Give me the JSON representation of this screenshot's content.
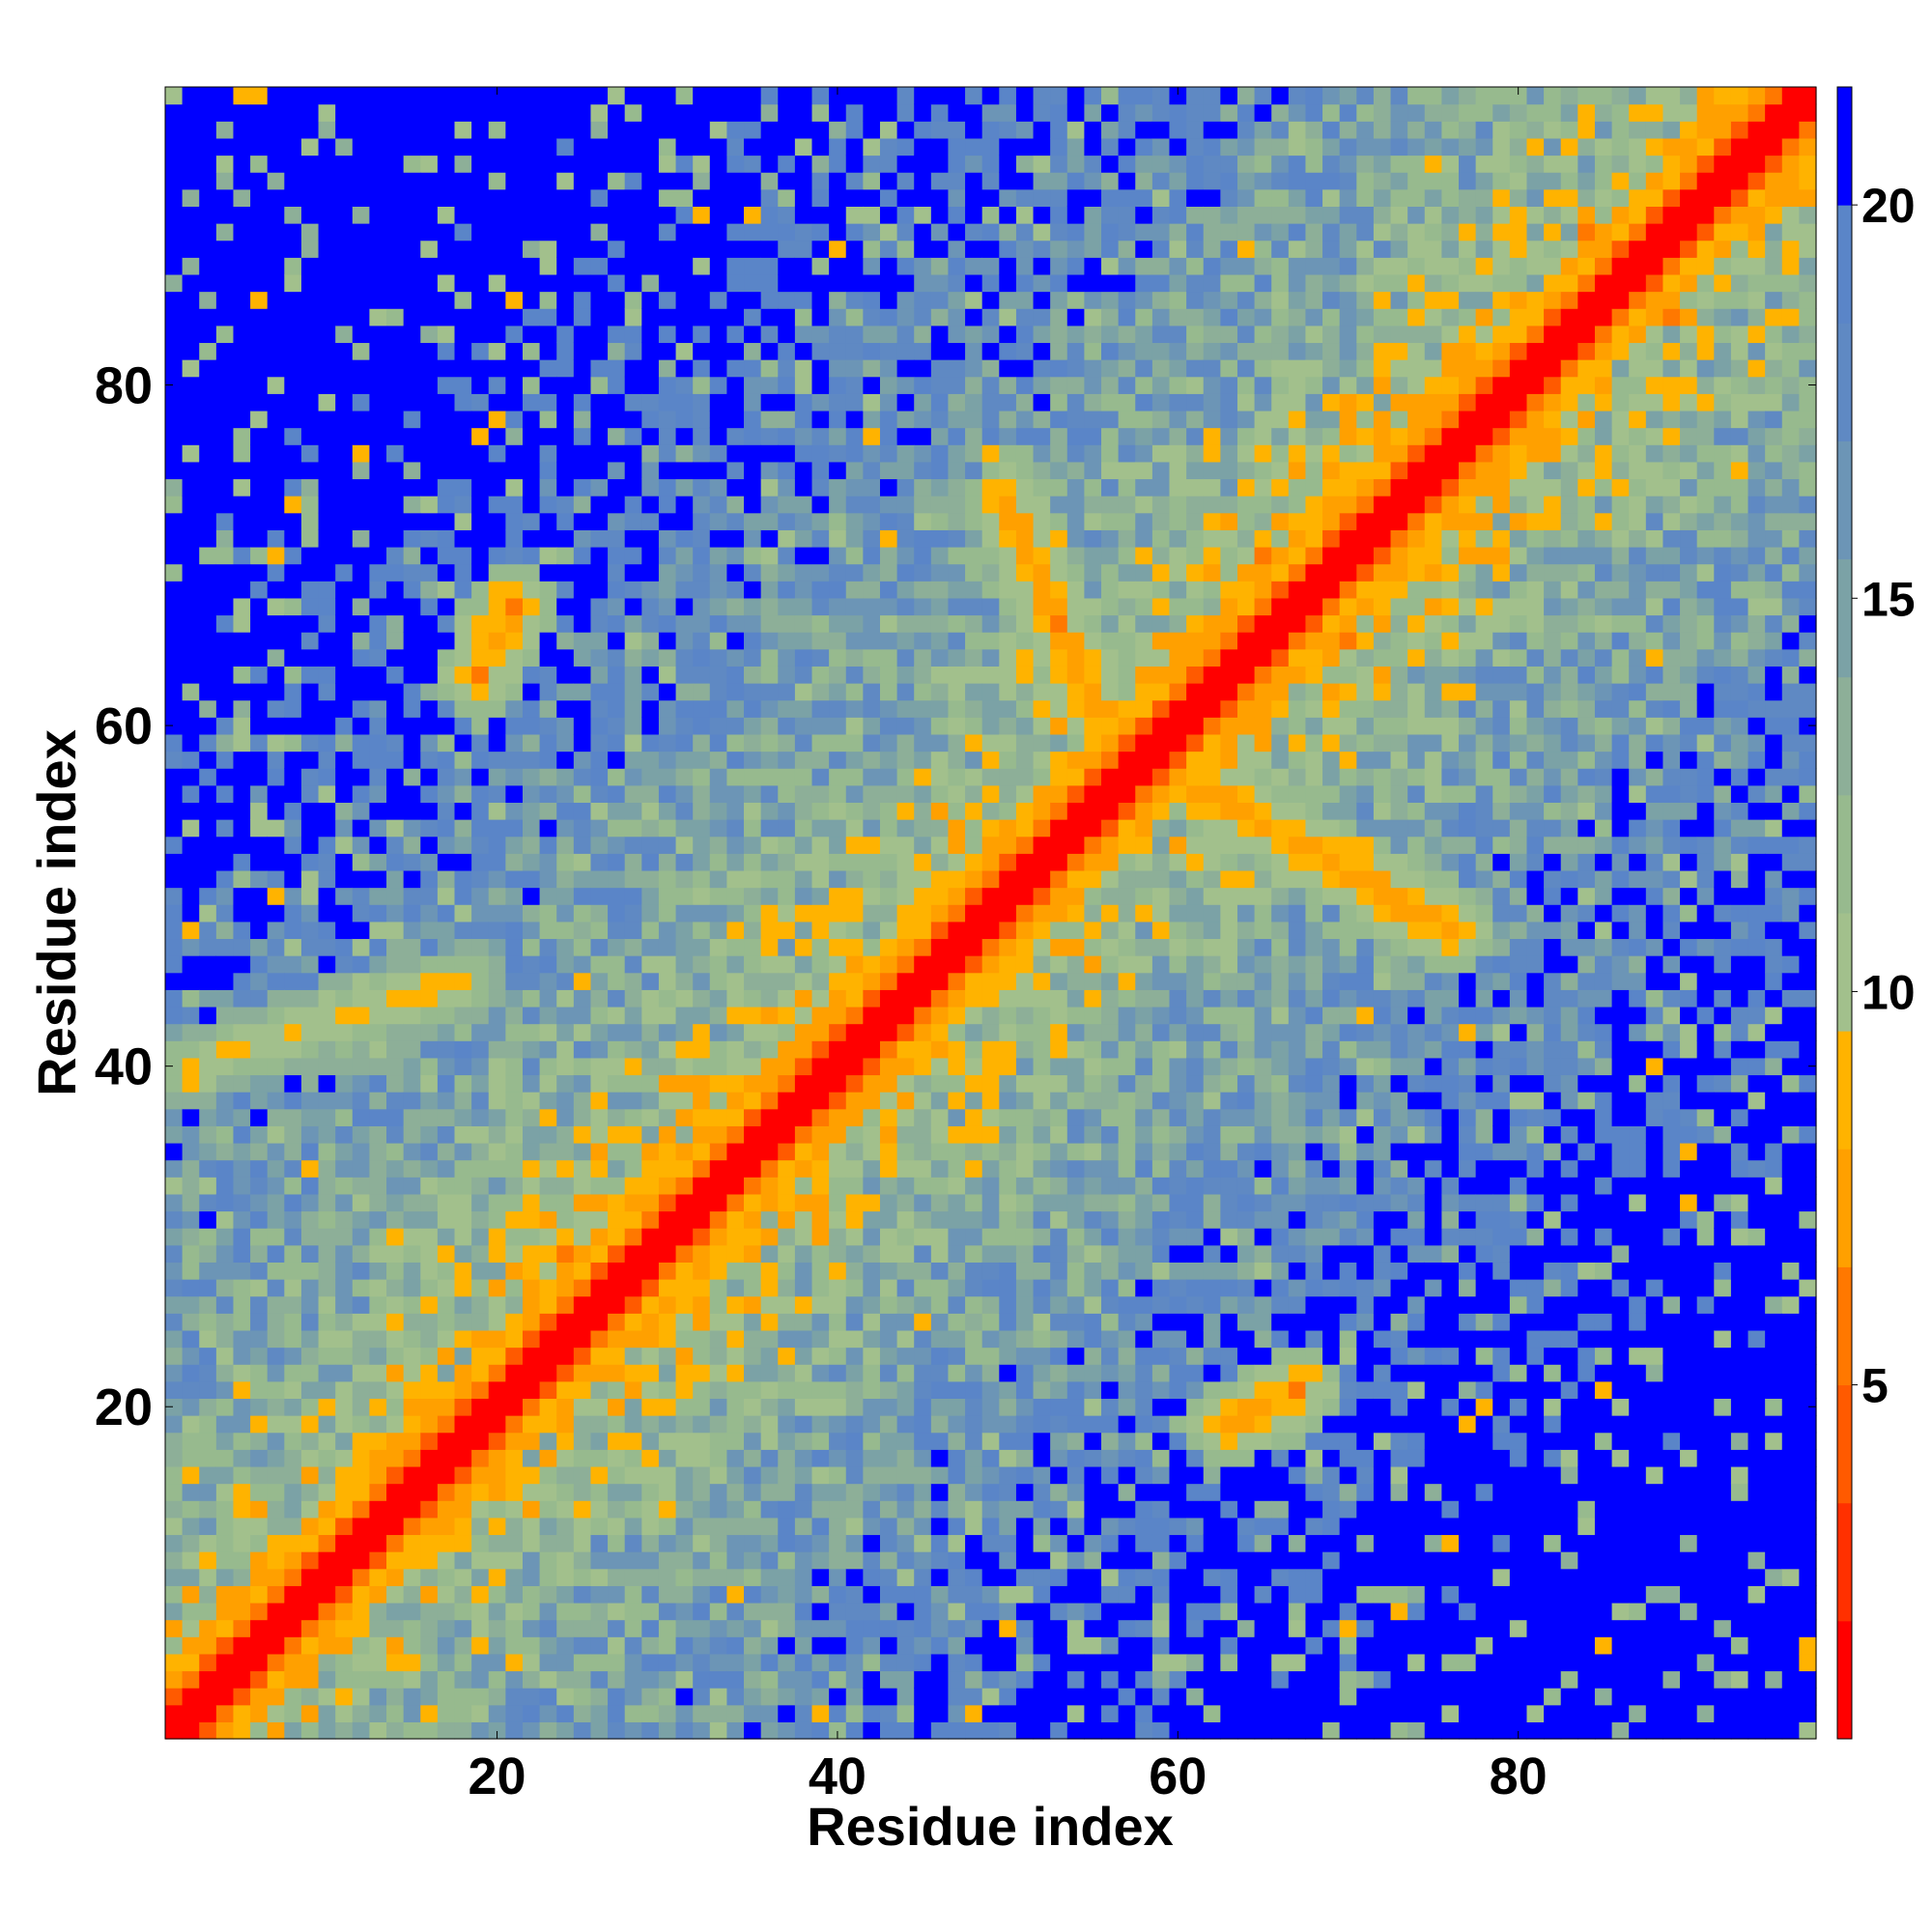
{
  "chart_data": {
    "type": "heatmap",
    "title": "",
    "xlabel": "Residue index",
    "ylabel": "Residue index",
    "n_residues": 97,
    "xlim": [
      0.5,
      97.5
    ],
    "ylim": [
      0.5,
      97.5
    ],
    "x_ticks": [
      20,
      40,
      60,
      80
    ],
    "y_ticks": [
      20,
      40,
      60,
      80
    ],
    "colorbar": {
      "range": [
        0.5,
        21.5
      ],
      "ticks": [
        5,
        10,
        15,
        20
      ],
      "levels": [
        {
          "min": 0.5,
          "max": 2.0,
          "color": "#ff0000"
        },
        {
          "min": 2.0,
          "max": 3.5,
          "color": "#ff3000"
        },
        {
          "min": 3.5,
          "max": 5.0,
          "color": "#ff5a00"
        },
        {
          "min": 5.0,
          "max": 6.5,
          "color": "#ff7800"
        },
        {
          "min": 6.5,
          "max": 8.0,
          "color": "#ffa000"
        },
        {
          "min": 8.0,
          "max": 9.5,
          "color": "#ffb300"
        },
        {
          "min": 9.5,
          "max": 11.0,
          "color": "#a2c08c"
        },
        {
          "min": 11.0,
          "max": 12.5,
          "color": "#97ba8e"
        },
        {
          "min": 12.5,
          "max": 14.0,
          "color": "#8daf98"
        },
        {
          "min": 14.0,
          "max": 15.5,
          "color": "#7ba2a6"
        },
        {
          "min": 15.5,
          "max": 17.0,
          "color": "#6c95b6"
        },
        {
          "min": 17.0,
          "max": 18.5,
          "color": "#5f89c3"
        },
        {
          "min": 18.5,
          "max": 20.0,
          "color": "#5a85c8"
        },
        {
          "min": 20.0,
          "max": 21.5,
          "color": "#0000ff"
        }
      ]
    },
    "contact_bands": [
      {
        "x": [
          50,
          56
        ],
        "y": [
          73,
          59
        ],
        "value": 6
      },
      {
        "x": [
          62,
          76
        ],
        "y": [
          56,
          48
        ],
        "value": 6
      },
      {
        "x": [
          63,
          67
        ],
        "y": [
          19,
          21
        ],
        "value": 6
      },
      {
        "x": [
          19,
          21
        ],
        "y": [
          63,
          67
        ],
        "value": 6
      },
      {
        "x": [
          2,
          18
        ],
        "y": [
          40,
          45
        ],
        "value": 8
      },
      {
        "x": [
          24,
          30
        ],
        "y": [
          29,
          26
        ],
        "value": 6
      }
    ],
    "far_field_value": 21
  }
}
